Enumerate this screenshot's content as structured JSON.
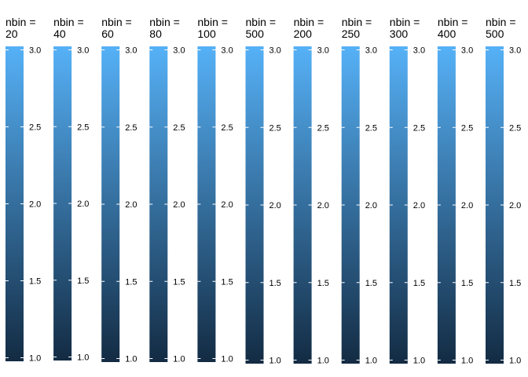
{
  "chart_data": {
    "type": "legend",
    "description_note": "",
    "legends": [
      {
        "title_lines": [
          "nbin =",
          "20"
        ],
        "nbin": 20,
        "range": [
          1.0,
          3.0
        ],
        "ticks": [
          1.0,
          1.5,
          2.0,
          2.5,
          3.0
        ],
        "tick_labels": [
          "1.0",
          "1.5",
          "2.0",
          "2.5",
          "3.0"
        ]
      },
      {
        "title_lines": [
          "nbin =",
          "40"
        ],
        "nbin": 40,
        "range": [
          1.0,
          3.0
        ],
        "ticks": [
          1.0,
          1.5,
          2.0,
          2.5,
          3.0
        ],
        "tick_labels": [
          "1.0",
          "1.5",
          "2.0",
          "2.5",
          "3.0"
        ]
      },
      {
        "title_lines": [
          "nbin =",
          "60"
        ],
        "nbin": 60,
        "range": [
          1.0,
          3.0
        ],
        "ticks": [
          1.0,
          1.5,
          2.0,
          2.5,
          3.0
        ],
        "tick_labels": [
          "1.0",
          "1.5",
          "2.0",
          "2.5",
          "3.0"
        ]
      },
      {
        "title_lines": [
          "nbin =",
          "80"
        ],
        "nbin": 80,
        "range": [
          1.0,
          3.0
        ],
        "ticks": [
          1.0,
          1.5,
          2.0,
          2.5,
          3.0
        ],
        "tick_labels": [
          "1.0",
          "1.5",
          "2.0",
          "2.5",
          "3.0"
        ]
      },
      {
        "title_lines": [
          "nbin =",
          "100"
        ],
        "nbin": 100,
        "range": [
          1.0,
          3.0
        ],
        "ticks": [
          1.0,
          1.5,
          2.0,
          2.5,
          3.0
        ],
        "tick_labels": [
          "1.0",
          "1.5",
          "2.0",
          "2.5",
          "3.0"
        ]
      },
      {
        "title_lines": [
          "nbin =",
          "500"
        ],
        "nbin": 500,
        "range": [
          1.0,
          3.0
        ],
        "ticks": [
          1.0,
          1.5,
          2.0,
          2.5,
          3.0
        ],
        "tick_labels": [
          "1.0",
          "1.5",
          "2.0",
          "2.5",
          "3.0"
        ]
      },
      {
        "title_lines": [
          "nbin =",
          "200"
        ],
        "nbin": 200,
        "range": [
          1.0,
          3.0
        ],
        "ticks": [
          1.0,
          1.5,
          2.0,
          2.5,
          3.0
        ],
        "tick_labels": [
          "1.0",
          "1.5",
          "2.0",
          "2.5",
          "3.0"
        ]
      },
      {
        "title_lines": [
          "nbin =",
          "250"
        ],
        "nbin": 250,
        "range": [
          1.0,
          3.0
        ],
        "ticks": [
          1.0,
          1.5,
          2.0,
          2.5,
          3.0
        ],
        "tick_labels": [
          "1.0",
          "1.5",
          "2.0",
          "2.5",
          "3.0"
        ]
      },
      {
        "title_lines": [
          "nbin =",
          "300"
        ],
        "nbin": 300,
        "range": [
          1.0,
          3.0
        ],
        "ticks": [
          1.0,
          1.5,
          2.0,
          2.5,
          3.0
        ],
        "tick_labels": [
          "1.0",
          "1.5",
          "2.0",
          "2.5",
          "3.0"
        ]
      },
      {
        "title_lines": [
          "nbin =",
          "400"
        ],
        "nbin": 400,
        "range": [
          1.0,
          3.0
        ],
        "ticks": [
          1.0,
          1.5,
          2.0,
          2.5,
          3.0
        ],
        "tick_labels": [
          "1.0",
          "1.5",
          "2.0",
          "2.5",
          "3.0"
        ]
      },
      {
        "title_lines": [
          "nbin =",
          "500"
        ],
        "nbin": 500,
        "range": [
          1.0,
          3.0
        ],
        "ticks": [
          1.0,
          1.5,
          2.0,
          2.5,
          3.0
        ],
        "tick_labels": [
          "1.0",
          "1.5",
          "2.0",
          "2.5",
          "3.0"
        ]
      }
    ],
    "gradient_colors": {
      "low": "#132B43",
      "high": "#56B1F7"
    },
    "tick_mark_color": "#ffffff",
    "grid": false
  }
}
